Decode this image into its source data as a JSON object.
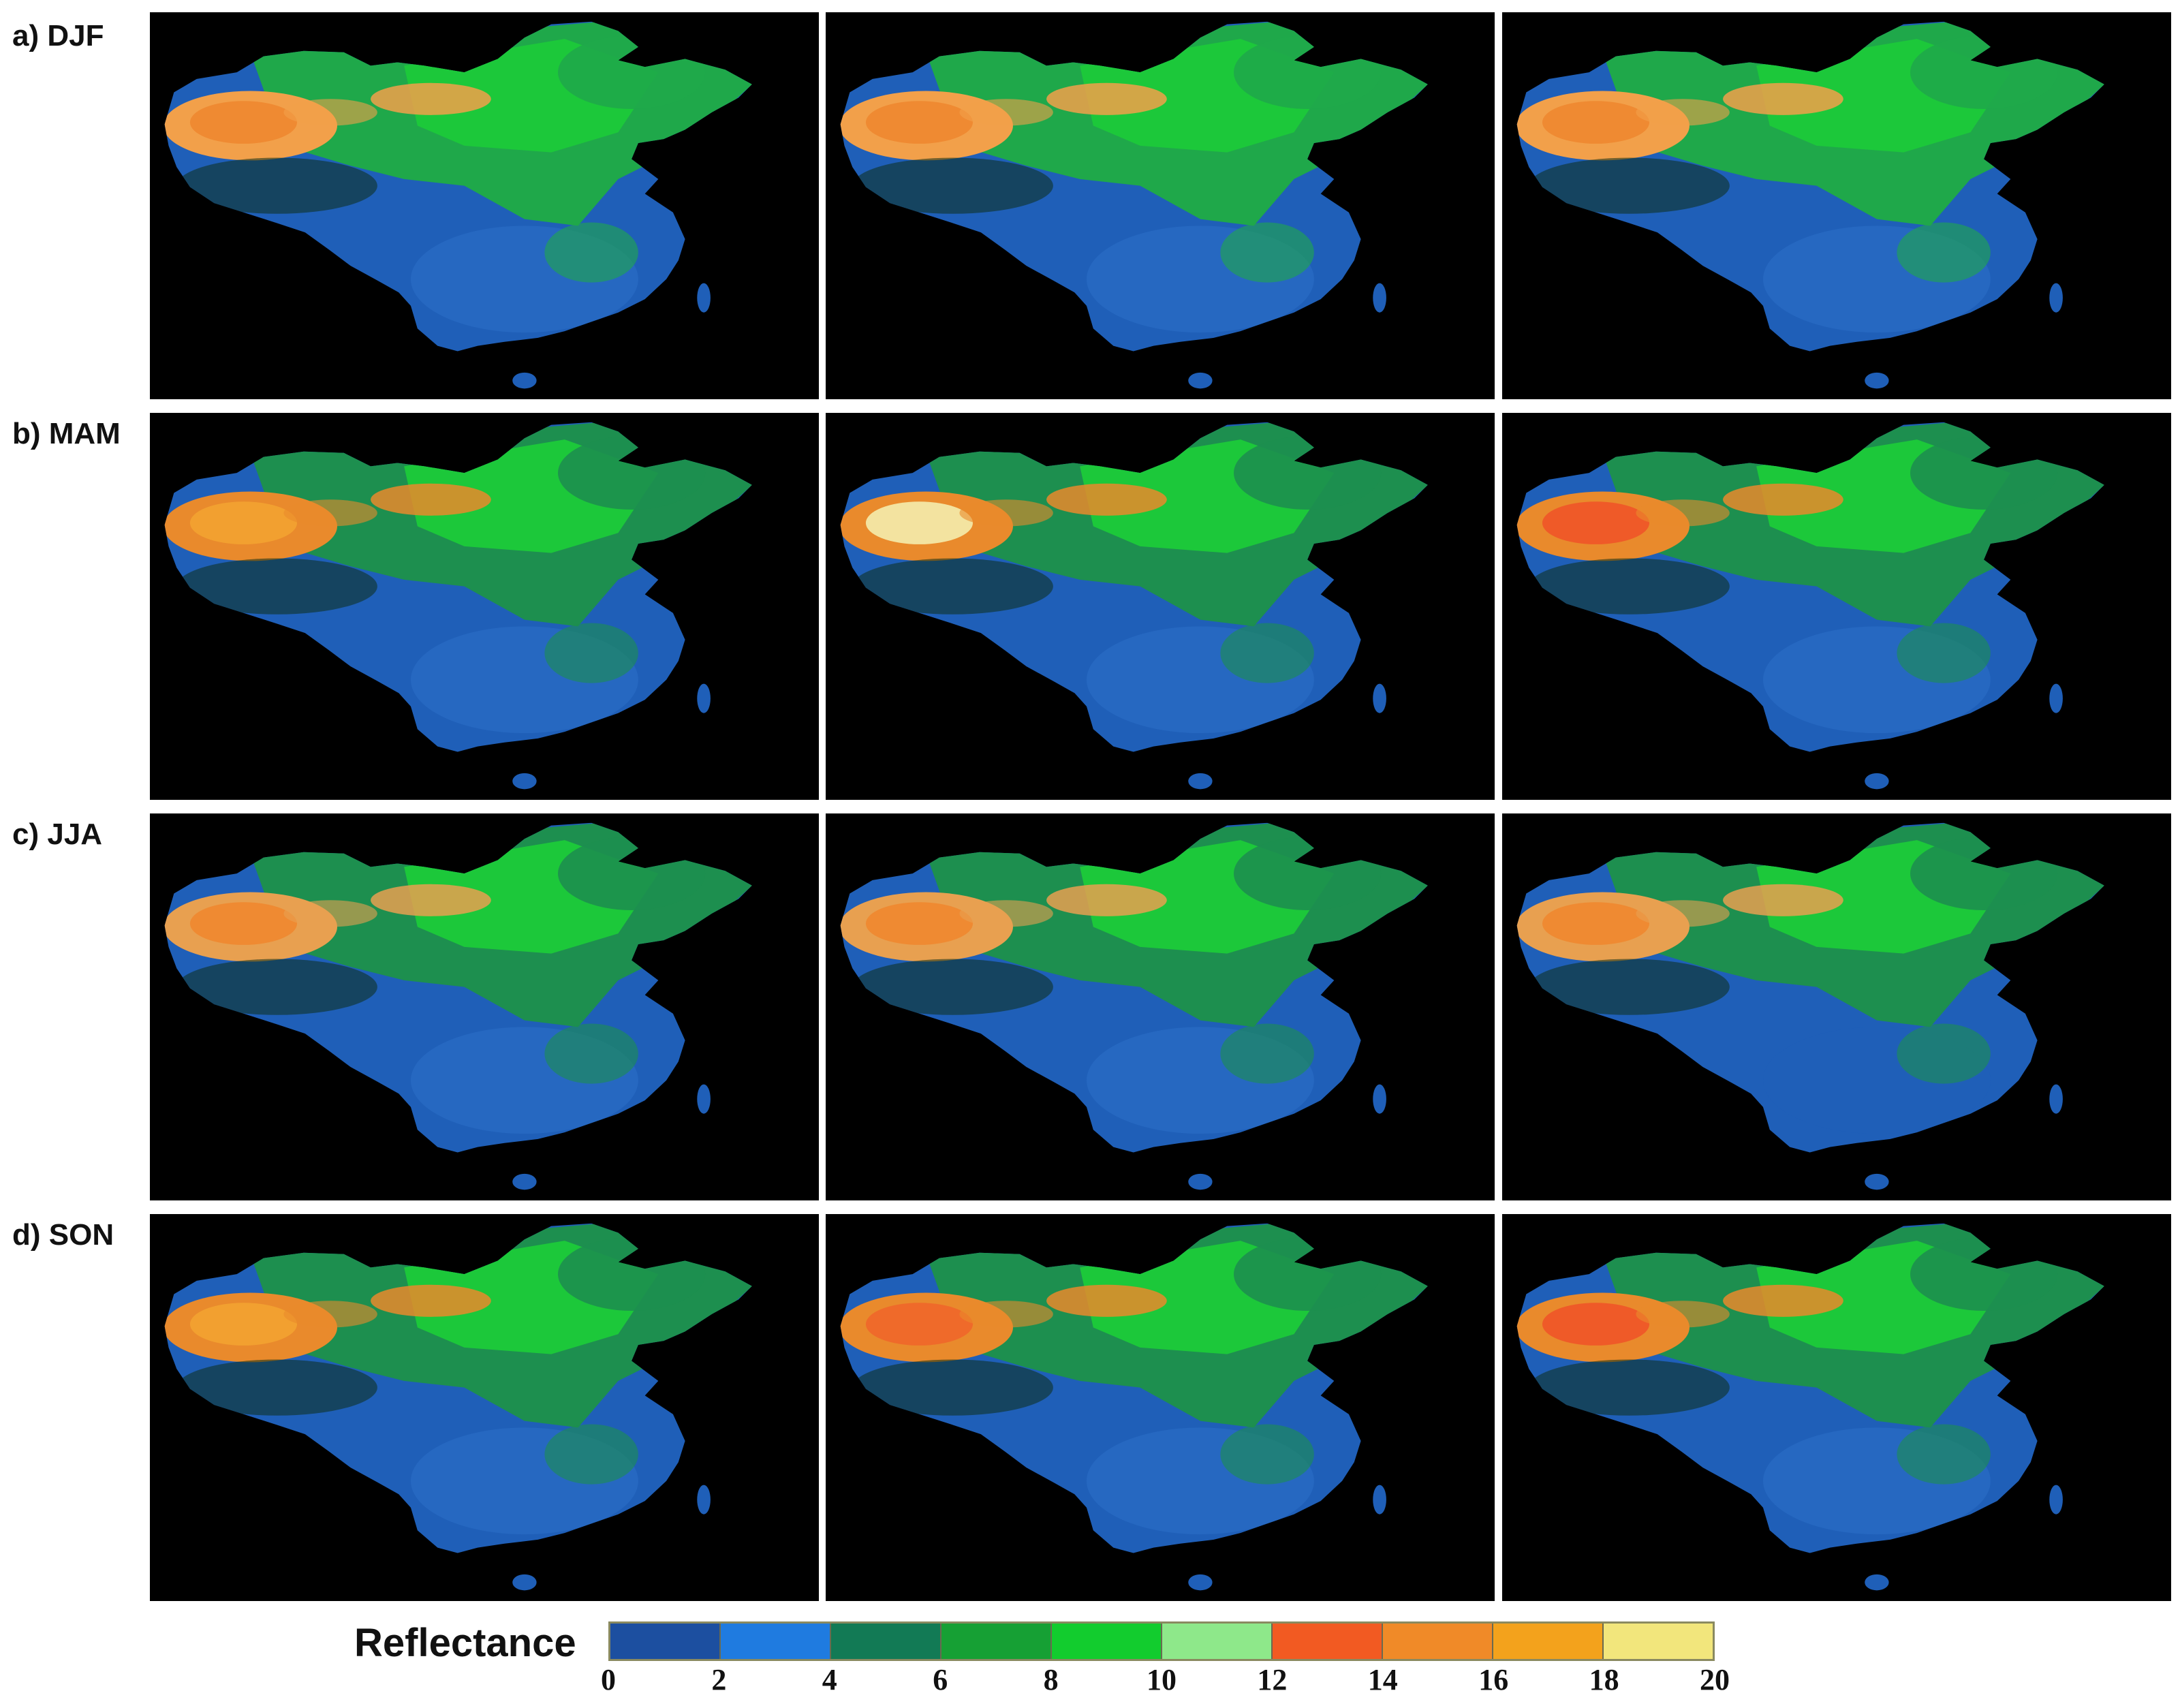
{
  "rows": [
    {
      "label": "a) DJF",
      "season": "DJF",
      "panels": [
        {
          "palette": [
            "#1f5fb8",
            "#2b70c8",
            "#1fa84a",
            "#1cc83a",
            "#ef8a32",
            "#f2a04a"
          ]
        },
        {
          "palette": [
            "#1f5fb8",
            "#2b70c8",
            "#1fa84a",
            "#1cc83a",
            "#ef8a32",
            "#f2a04a"
          ]
        },
        {
          "palette": [
            "#1f5fb8",
            "#2b70c8",
            "#1fa84a",
            "#1cc83a",
            "#ef8a32",
            "#f2a04a"
          ]
        }
      ]
    },
    {
      "label": "b) MAM",
      "season": "MAM",
      "panels": [
        {
          "palette": [
            "#1f5fb8",
            "#2b70c8",
            "#1d8f4f",
            "#1cc83a",
            "#f2a030",
            "#e98a2c"
          ]
        },
        {
          "palette": [
            "#1f5fb8",
            "#2b70c8",
            "#1d8f4f",
            "#1cc83a",
            "#f3e3a0",
            "#e98a2c"
          ]
        },
        {
          "palette": [
            "#1f5fb8",
            "#2b70c8",
            "#1d8f4f",
            "#1cc83a",
            "#ef5a28",
            "#e98a2c"
          ]
        }
      ]
    },
    {
      "label": "c) JJA",
      "season": "JJA",
      "panels": [
        {
          "palette": [
            "#1f5fb8",
            "#2b70c8",
            "#1d8f4f",
            "#1cc83a",
            "#ef8a32",
            "#e8a050"
          ]
        },
        {
          "palette": [
            "#1f5fb8",
            "#2b70c8",
            "#1d8f4f",
            "#1cc83a",
            "#ef8a32",
            "#e8a050"
          ]
        },
        {
          "palette": [
            "#1f5fb8",
            "#1f5fb8",
            "#1d8f4f",
            "#1cc83a",
            "#ef8a32",
            "#e8a050"
          ]
        }
      ]
    },
    {
      "label": "d) SON",
      "season": "SON",
      "panels": [
        {
          "palette": [
            "#1f5fb8",
            "#2b70c8",
            "#1d8f4f",
            "#1cc83a",
            "#f2a030",
            "#e98a2c"
          ]
        },
        {
          "palette": [
            "#1f5fb8",
            "#2b70c8",
            "#1d8f4f",
            "#1cc83a",
            "#ef6a2a",
            "#e98a2c"
          ]
        },
        {
          "palette": [
            "#1f5fb8",
            "#2b70c8",
            "#1d8f4f",
            "#1cc83a",
            "#ef5a28",
            "#e98a2c"
          ]
        }
      ]
    }
  ],
  "colorbar": {
    "title": "Reflectance",
    "ticks": [
      "0",
      "2",
      "4",
      "6",
      "8",
      "10",
      "12",
      "14",
      "16",
      "18",
      "20"
    ],
    "colors": [
      "#1c4fa0",
      "#1f7be0",
      "#127a55",
      "#16a034",
      "#12cc2e",
      "#8ee88a",
      "#f25a22",
      "#f08a28",
      "#f3a21c",
      "#f2e67c"
    ]
  }
}
